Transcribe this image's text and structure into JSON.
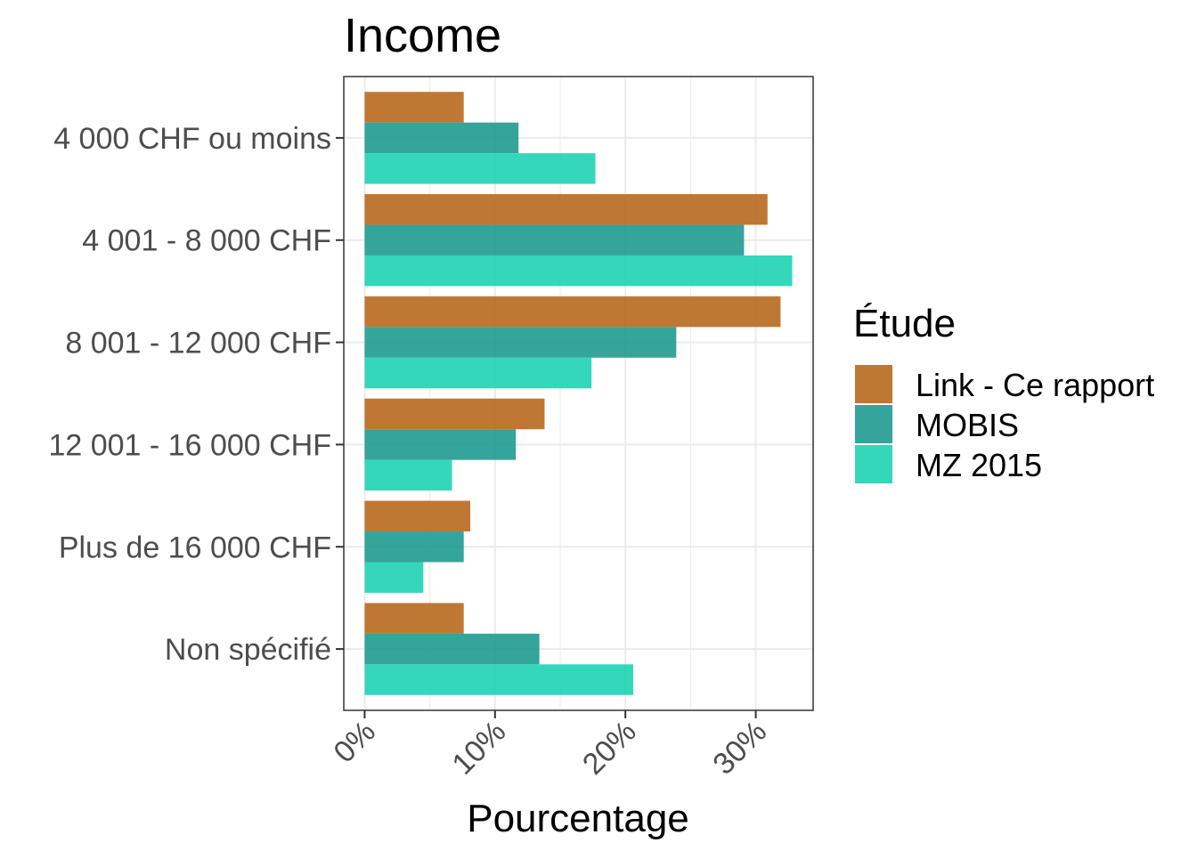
{
  "chart_data": {
    "type": "bar",
    "orientation": "horizontal",
    "title": "Income",
    "xlabel": "Pourcentage",
    "ylabel": "",
    "categories": [
      "4 000 CHF ou moins",
      "4 001 - 8 000 CHF",
      "8 001 - 12 000 CHF",
      "12 001 - 16 000 CHF",
      "Plus de 16 000 CHF",
      "Non spécifié"
    ],
    "series": [
      {
        "name": "Link - Ce rapport",
        "color": "#b8691d",
        "values": [
          7.6,
          30.9,
          31.9,
          13.8,
          8.1,
          7.6
        ]
      },
      {
        "name": "MOBIS",
        "color": "#1f9a90",
        "values": [
          11.8,
          29.1,
          23.9,
          11.6,
          7.6,
          13.4
        ]
      },
      {
        "name": "MZ 2015",
        "color": "#1fd3b4",
        "values": [
          17.7,
          32.8,
          17.4,
          6.7,
          4.5,
          20.6
        ]
      }
    ],
    "xlim": [
      -1.6,
      34.4
    ],
    "xticks": [
      0,
      10,
      20,
      30
    ],
    "xtick_labels": [
      "0%",
      "10%",
      "20%",
      "30%"
    ],
    "grid": true,
    "legend": {
      "title": "Étude",
      "position": "right"
    }
  }
}
